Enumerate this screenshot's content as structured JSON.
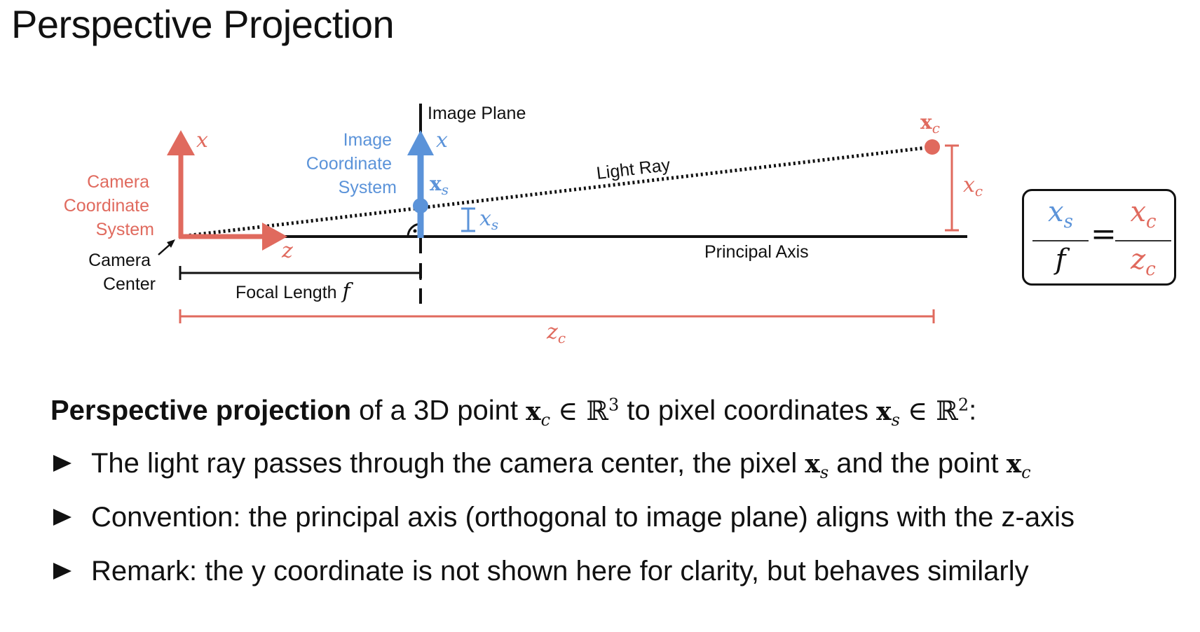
{
  "slide": {
    "title": "Perspective Projection"
  },
  "colors": {
    "camera": "#e06a5e",
    "image": "#5b93d9",
    "black": "#111111"
  },
  "diagram": {
    "camera_x_axis": "x",
    "camera_z_axis": "z",
    "camera_system_label": [
      "Camera",
      "Coordinate",
      "System"
    ],
    "camera_center_label": [
      "Camera",
      "Center"
    ],
    "image_plane_label": "Image Plane",
    "image_system_label": [
      "Image",
      "Coordinate",
      "System"
    ],
    "image_x_axis": "x",
    "xs_point_label": "x",
    "xs_point_sub": "s",
    "xs_dim_label": "x",
    "xs_dim_sub": "s",
    "light_ray_label": "Light Ray",
    "xc_point_label": "x",
    "xc_point_sub": "c",
    "xc_dim_label": "x",
    "xc_dim_sub": "c",
    "principal_axis_label": "Principal Axis",
    "focal_length_label": "Focal Length",
    "focal_length_symbol": "f",
    "zc_label": "z",
    "zc_sub": "c"
  },
  "formula": {
    "left_num": "x",
    "left_num_sub": "s",
    "left_den": "f",
    "equals": "=",
    "right_num": "x",
    "right_num_sub": "c",
    "right_den": "z",
    "right_den_sub": "c"
  },
  "content": {
    "intro_bold": "Perspective projection",
    "intro_text1": " of a 3D point ",
    "intro_text2": " to pixel coordinates ",
    "intro_end": ":",
    "xc_symbol": "x",
    "xc_sub": "c",
    "xs_symbol": "x",
    "xs_sub": "s",
    "in_symbol": "∈",
    "R_symbol": "ℝ",
    "R3_exp": "3",
    "R2_exp": "2",
    "bullets": [
      {
        "pre": "The light ray passes through the camera center, the pixel ",
        "mid": " and the point ",
        "post": ""
      },
      {
        "text": "Convention: the principal axis (orthogonal to image plane) aligns with the z-axis"
      },
      {
        "text": "Remark: the y coordinate is not shown here for clarity, but behaves similarly"
      }
    ]
  }
}
